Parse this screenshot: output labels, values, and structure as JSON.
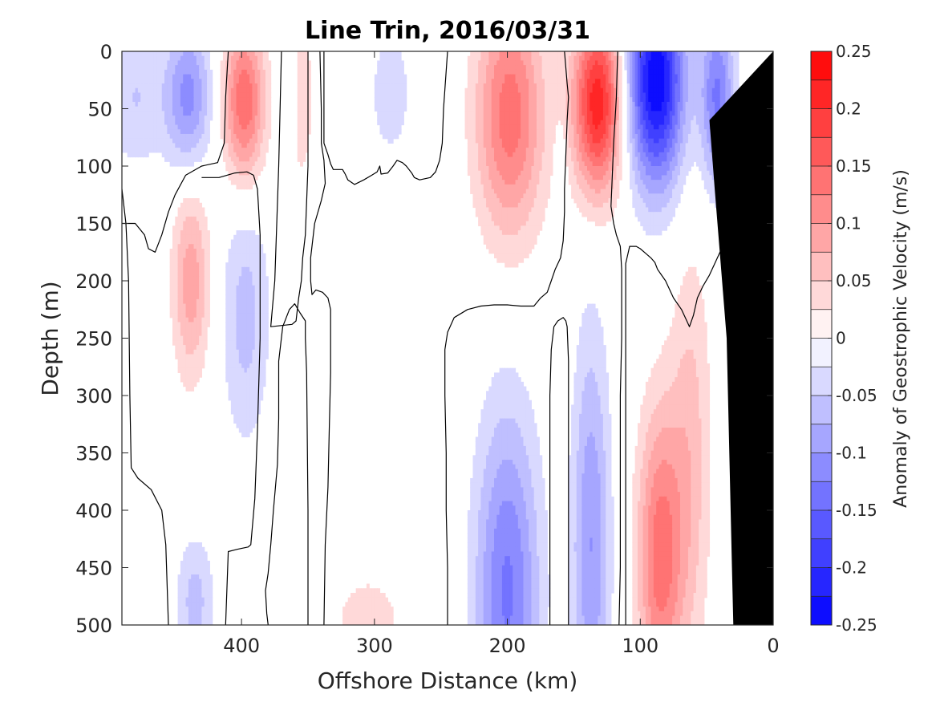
{
  "chart_data": {
    "type": "heatmap",
    "subtype": "filled-contour section",
    "title": "Line Trin, 2016/03/31",
    "xlabel": "Offshore Distance (km)",
    "ylabel": "Depth (m)",
    "colorbar_label": "Anomaly of Geostrophic Velocity (m/s)",
    "xlim": [
      490,
      0
    ],
    "ylim": [
      0,
      500
    ],
    "x_reversed": true,
    "y_reversed": true,
    "x_ticks": [
      400,
      300,
      200,
      100,
      0
    ],
    "x_tick_labels": [
      "400",
      "300",
      "200",
      "100",
      "0"
    ],
    "y_ticks": [
      0,
      50,
      100,
      150,
      200,
      250,
      300,
      350,
      400,
      450,
      500
    ],
    "y_tick_labels": [
      "0",
      "50",
      "100",
      "150",
      "200",
      "250",
      "300",
      "350",
      "400",
      "450",
      "500"
    ],
    "color_range": [
      -0.25,
      0.25
    ],
    "color_levels": [
      -0.25,
      -0.225,
      -0.2,
      -0.175,
      -0.15,
      -0.125,
      -0.1,
      -0.075,
      -0.05,
      -0.025,
      0,
      0.025,
      0.05,
      0.075,
      0.1,
      0.125,
      0.15,
      0.175,
      0.2,
      0.225,
      0.25
    ],
    "colorbar_ticks": [
      0.25,
      0.2,
      0.15,
      0.1,
      0.05,
      0,
      -0.05,
      -0.1,
      -0.15,
      -0.2,
      -0.25
    ],
    "colorbar_tick_labels": [
      "0.25",
      "0.2",
      "0.15",
      "0.1",
      "0.05",
      "0",
      "-0.05",
      "-0.1",
      "-0.15",
      "-0.2",
      "-0.25"
    ],
    "colormap": {
      "negative": "#0000ff",
      "zero": "#ffffff",
      "positive": "#ff0000"
    },
    "contour_color": "#000000",
    "bathymetry_color": "#000000",
    "grid": false,
    "features": [
      {
        "kind": "positive",
        "x": 132,
        "y": 45,
        "sx": 13,
        "sy": 55,
        "amp": 0.22
      },
      {
        "kind": "positive",
        "x": 198,
        "y": 55,
        "sx": 18,
        "sy": 75,
        "amp": 0.14
      },
      {
        "kind": "positive",
        "x": 398,
        "y": 45,
        "sx": 11,
        "sy": 50,
        "amp": 0.15
      },
      {
        "kind": "positive",
        "x": 438,
        "y": 200,
        "sx": 10,
        "sy": 60,
        "amp": 0.09
      },
      {
        "kind": "positive",
        "x": 85,
        "y": 440,
        "sx": 12,
        "sy": 90,
        "amp": 0.14
      },
      {
        "kind": "positive",
        "x": 62,
        "y": 350,
        "sx": 11,
        "sy": 130,
        "amp": 0.06
      },
      {
        "kind": "positive",
        "x": 355,
        "y": 40,
        "sx": 6,
        "sy": 50,
        "amp": 0.05
      },
      {
        "kind": "positive",
        "x": 305,
        "y": 495,
        "sx": 20,
        "sy": 30,
        "amp": 0.04
      },
      {
        "kind": "positive",
        "x": 33,
        "y": 180,
        "sx": 4,
        "sy": 40,
        "amp": 0.05
      },
      {
        "kind": "negative",
        "x": 88,
        "y": 25,
        "sx": 15,
        "sy": 65,
        "amp": -0.25
      },
      {
        "kind": "negative",
        "x": 42,
        "y": 40,
        "sx": 9,
        "sy": 55,
        "amp": -0.13
      },
      {
        "kind": "negative",
        "x": 440,
        "y": 40,
        "sx": 12,
        "sy": 45,
        "amp": -0.11
      },
      {
        "kind": "negative",
        "x": 200,
        "y": 470,
        "sx": 17,
        "sy": 110,
        "amp": -0.13
      },
      {
        "kind": "negative",
        "x": 137,
        "y": 430,
        "sx": 10,
        "sy": 130,
        "amp": -0.1
      },
      {
        "kind": "negative",
        "x": 397,
        "y": 230,
        "sx": 13,
        "sy": 80,
        "amp": -0.06
      },
      {
        "kind": "negative",
        "x": 288,
        "y": 35,
        "sx": 11,
        "sy": 40,
        "amp": -0.045
      },
      {
        "kind": "negative",
        "x": 480,
        "y": 40,
        "sx": 16,
        "sy": 45,
        "amp": -0.05
      },
      {
        "kind": "negative",
        "x": 435,
        "y": 480,
        "sx": 10,
        "sy": 40,
        "amp": -0.06
      },
      {
        "kind": "negative",
        "x": 363,
        "y": 30,
        "sx": 4,
        "sy": 30,
        "amp": -0.04
      },
      {
        "kind": "negative",
        "x": 160,
        "y": 110,
        "sx": 3,
        "sy": 30,
        "amp": -0.04
      }
    ],
    "zero_contours": [
      [
        [
          490,
          150
        ],
        [
          480,
          150
        ],
        [
          473,
          160
        ],
        [
          470,
          172
        ],
        [
          465,
          175
        ],
        [
          460,
          160
        ],
        [
          455,
          140
        ],
        [
          450,
          125
        ],
        [
          442,
          108
        ],
        [
          430,
          100
        ],
        [
          418,
          97
        ],
        [
          413,
          80
        ],
        [
          412,
          40
        ],
        [
          410,
          0
        ]
      ],
      [
        [
          455,
          500
        ],
        [
          457,
          430
        ],
        [
          460,
          400
        ],
        [
          468,
          382
        ],
        [
          478,
          372
        ],
        [
          483,
          363
        ],
        [
          484,
          300
        ],
        [
          485,
          200
        ],
        [
          487,
          150
        ],
        [
          490,
          120
        ],
        [
          496,
          104
        ],
        [
          498,
          100
        ]
      ],
      [
        [
          412,
          500
        ],
        [
          410,
          436
        ],
        [
          403,
          434
        ],
        [
          395,
          432
        ],
        [
          393,
          430
        ],
        [
          390,
          390
        ],
        [
          388,
          330
        ],
        [
          386,
          250
        ],
        [
          386,
          160
        ],
        [
          388,
          120
        ],
        [
          391,
          108
        ],
        [
          396,
          105
        ],
        [
          405,
          106
        ],
        [
          417,
          110
        ],
        [
          430,
          110
        ]
      ],
      [
        [
          370,
          0
        ],
        [
          372,
          100
        ],
        [
          375,
          200
        ],
        [
          378,
          240
        ],
        [
          362,
          238
        ],
        [
          359,
          235
        ],
        [
          357,
          215
        ],
        [
          355,
          200
        ],
        [
          354,
          180
        ],
        [
          352,
          160
        ],
        [
          350,
          100
        ],
        [
          350,
          0
        ]
      ],
      [
        [
          350,
          500
        ],
        [
          350,
          400
        ],
        [
          351,
          280
        ],
        [
          352,
          250
        ],
        [
          352,
          235
        ],
        [
          356,
          228
        ],
        [
          360,
          220
        ],
        [
          364,
          225
        ],
        [
          369,
          240
        ],
        [
          372,
          270
        ],
        [
          372,
          320
        ],
        [
          373,
          360
        ],
        [
          376,
          400
        ],
        [
          378,
          430
        ],
        [
          380,
          455
        ],
        [
          382,
          470
        ],
        [
          381,
          490
        ],
        [
          380,
          500
        ]
      ],
      [
        [
          338,
          500
        ],
        [
          337,
          430
        ],
        [
          335,
          380
        ],
        [
          334,
          330
        ],
        [
          333,
          280
        ],
        [
          333,
          250
        ],
        [
          333,
          225
        ],
        [
          335,
          215
        ],
        [
          339,
          210
        ],
        [
          344,
          208
        ],
        [
          347,
          212
        ],
        [
          348,
          200
        ],
        [
          348,
          180
        ],
        [
          345,
          150
        ],
        [
          340,
          130
        ],
        [
          337,
          115
        ],
        [
          338,
          95
        ],
        [
          340,
          80
        ],
        [
          340,
          50
        ],
        [
          341,
          0
        ]
      ],
      [
        [
          245,
          0
        ],
        [
          248,
          50
        ],
        [
          249,
          80
        ],
        [
          251,
          95
        ],
        [
          254,
          105
        ],
        [
          258,
          110
        ],
        [
          266,
          112
        ],
        [
          270,
          110
        ],
        [
          272,
          106
        ],
        [
          276,
          100
        ],
        [
          279,
          97
        ],
        [
          283,
          95
        ],
        [
          286,
          100
        ],
        [
          290,
          106
        ],
        [
          295,
          107
        ],
        [
          296,
          100
        ],
        [
          298,
          105
        ],
        [
          302,
          108
        ],
        [
          308,
          112
        ],
        [
          315,
          116
        ],
        [
          320,
          112
        ],
        [
          322,
          107
        ],
        [
          324,
          103
        ],
        [
          326,
          103
        ],
        [
          331,
          103
        ],
        [
          333,
          98
        ],
        [
          335,
          90
        ],
        [
          338,
          80
        ],
        [
          338,
          0
        ]
      ],
      [
        [
          245,
          500
        ],
        [
          245,
          450
        ],
        [
          246,
          400
        ],
        [
          246,
          350
        ],
        [
          247,
          300
        ],
        [
          247,
          260
        ],
        [
          245,
          245
        ],
        [
          240,
          232
        ],
        [
          230,
          225
        ],
        [
          220,
          222
        ],
        [
          210,
          221
        ],
        [
          200,
          221
        ],
        [
          190,
          222
        ],
        [
          180,
          222
        ],
        [
          175,
          215
        ],
        [
          170,
          210
        ],
        [
          167,
          200
        ],
        [
          164,
          190
        ],
        [
          160,
          180
        ],
        [
          158,
          165
        ],
        [
          157,
          140
        ],
        [
          157,
          120
        ],
        [
          156,
          90
        ],
        [
          155,
          60
        ],
        [
          154,
          40
        ],
        [
          155,
          28
        ],
        [
          157,
          0
        ]
      ],
      [
        [
          168,
          500
        ],
        [
          168,
          400
        ],
        [
          168,
          300
        ],
        [
          167,
          260
        ],
        [
          165,
          240
        ],
        [
          162,
          235
        ],
        [
          158,
          232
        ],
        [
          156,
          235
        ],
        [
          155,
          240
        ],
        [
          154,
          270
        ],
        [
          154,
          300
        ],
        [
          154,
          400
        ],
        [
          154,
          500
        ]
      ],
      [
        [
          116,
          500
        ],
        [
          115,
          450
        ],
        [
          115,
          400
        ],
        [
          115,
          300
        ],
        [
          114,
          250
        ],
        [
          114,
          190
        ],
        [
          115,
          170
        ],
        [
          118,
          160
        ],
        [
          120,
          150
        ],
        [
          122,
          135
        ],
        [
          120,
          80
        ],
        [
          118,
          40
        ],
        [
          117,
          0
        ]
      ],
      [
        [
          111,
          500
        ],
        [
          111,
          400
        ],
        [
          111,
          300
        ],
        [
          111,
          250
        ],
        [
          111,
          185
        ],
        [
          108,
          170
        ],
        [
          103,
          170
        ],
        [
          100,
          172
        ],
        [
          96,
          176
        ],
        [
          92,
          180
        ],
        [
          89,
          184
        ],
        [
          87,
          190
        ],
        [
          84,
          195
        ],
        [
          81,
          200
        ],
        [
          79,
          205
        ],
        [
          77,
          210
        ],
        [
          75,
          215
        ],
        [
          72,
          220
        ],
        [
          69,
          225
        ],
        [
          67,
          230
        ],
        [
          65,
          235
        ],
        [
          63,
          240
        ],
        [
          60,
          230
        ],
        [
          57,
          215
        ],
        [
          53,
          205
        ],
        [
          48,
          195
        ],
        [
          44,
          185
        ],
        [
          40,
          175
        ],
        [
          37,
          165
        ],
        [
          35,
          160
        ],
        [
          33,
          150
        ],
        [
          32,
          120
        ],
        [
          30,
          100
        ],
        [
          29,
          90
        ],
        [
          28,
          85
        ]
      ]
    ]
  }
}
